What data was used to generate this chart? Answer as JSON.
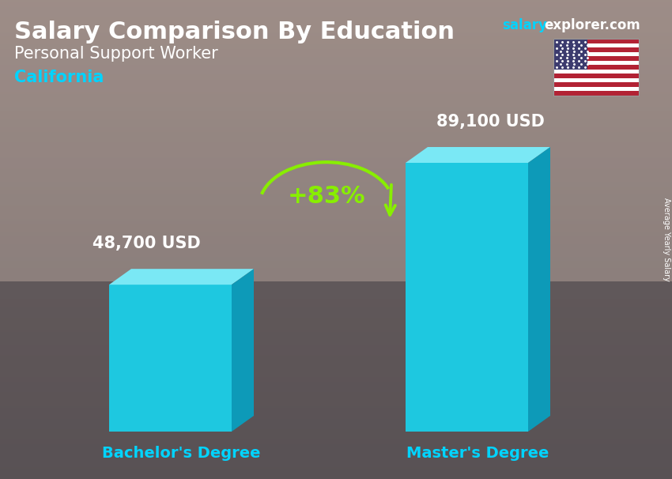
{
  "title_bold": "Salary Comparison By Education",
  "subtitle": "Personal Support Worker",
  "location": "California",
  "watermark_salary": "salary",
  "watermark_rest": "explorer.com",
  "ylabel": "Average Yearly Salary",
  "categories": [
    "Bachelor's Degree",
    "Master's Degree"
  ],
  "values": [
    48700,
    89100
  ],
  "value_labels": [
    "48,700 USD",
    "89,100 USD"
  ],
  "bar_color_face": "#1ec8e0",
  "bar_color_top": "#7ae8f5",
  "bar_color_side": "#0d9ab8",
  "percent_label": "+83%",
  "percent_color": "#88ee00",
  "arrow_color": "#88ee00",
  "title_color": "#ffffff",
  "subtitle_color": "#ffffff",
  "location_color": "#00d4ff",
  "value_label_color": "#ffffff",
  "category_label_color": "#00d4ff",
  "watermark_salary_color": "#00d4ff",
  "watermark_rest_color": "#ffffff",
  "bg_light": "#aaaaaa",
  "bg_dark": "#555566",
  "figsize": [
    8.5,
    6.06
  ],
  "dpi": 100
}
